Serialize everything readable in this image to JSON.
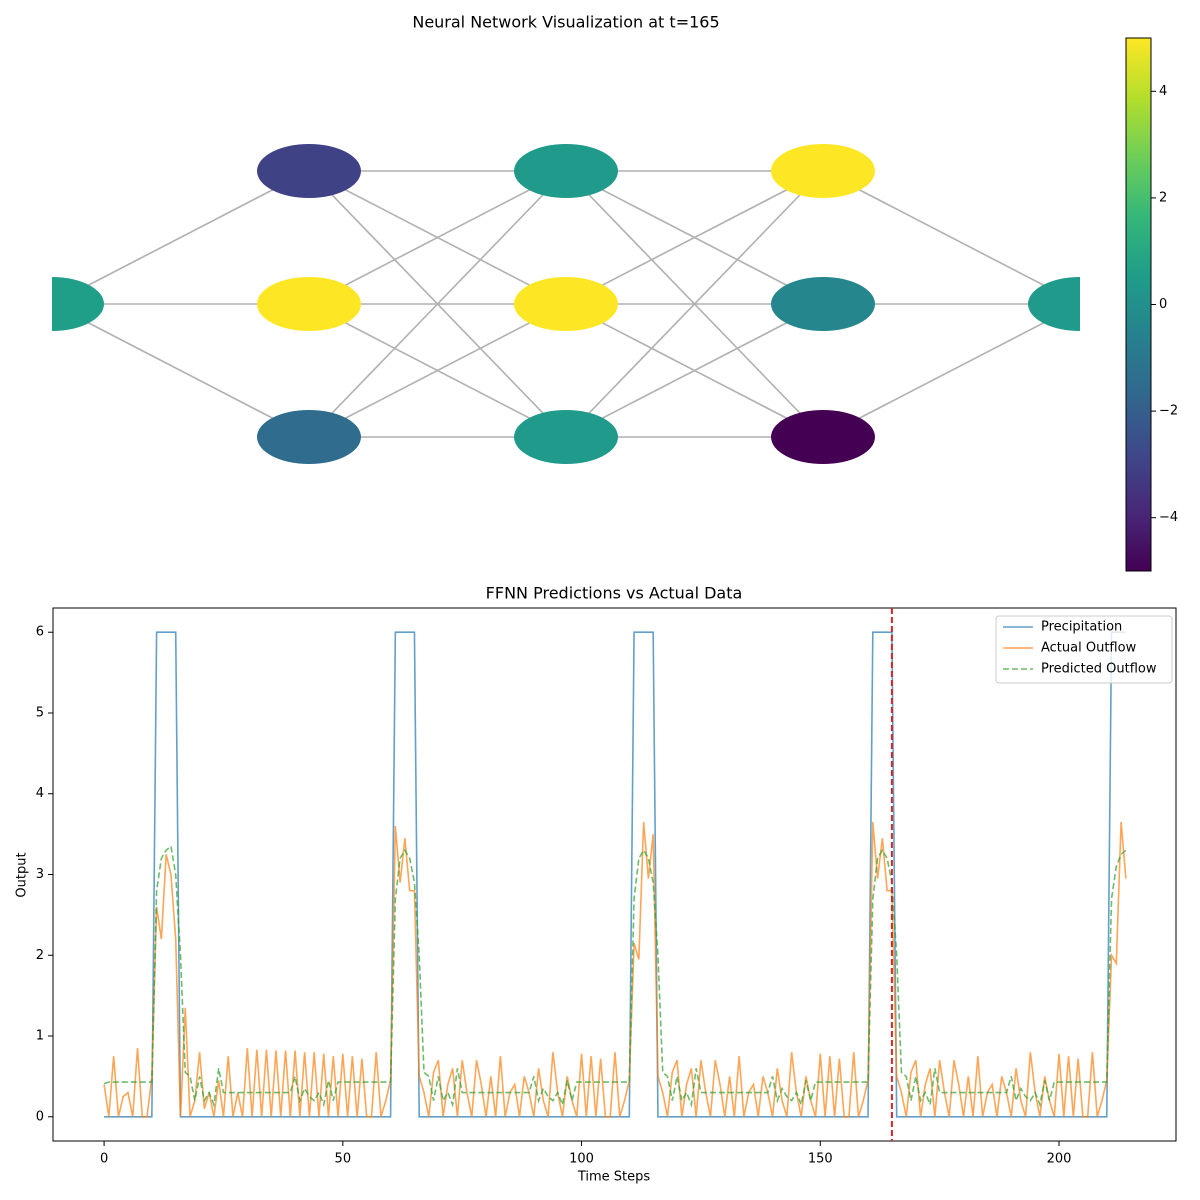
{
  "chart_data": [
    {
      "type": "network",
      "title": "Neural Network Visualization at t=165",
      "layers": [
        [
          0.6
        ],
        [
          -3,
          5,
          -1.5
        ],
        [
          0.4,
          5,
          0.4
        ],
        [
          5,
          -0.4,
          -5
        ],
        [
          0.4
        ]
      ],
      "colormap": "viridis",
      "clim": [
        -5,
        5
      ],
      "cticks": [
        {
          "value": -4,
          "label": "−4"
        },
        {
          "value": -2,
          "label": "−2"
        },
        0,
        2,
        4
      ]
    },
    {
      "type": "line",
      "title": "FFNN Predictions vs Actual Data",
      "xlabel": "Time Steps",
      "ylabel": "Output",
      "xlim": [
        -10.7,
        224.5
      ],
      "ylim": [
        -0.3,
        6.3
      ],
      "xticks": [
        0,
        50,
        100,
        150,
        200
      ],
      "yticks": [
        0,
        1,
        2,
        3,
        4,
        5,
        6
      ],
      "legend": "upper right",
      "vlines": [
        {
          "x": 165,
          "color": "#d62728"
        }
      ],
      "x": [
        0,
        1,
        2,
        3,
        4,
        5,
        6,
        7,
        8,
        9,
        10,
        11,
        12,
        13,
        14,
        15,
        16,
        17,
        18,
        19,
        20,
        21,
        22,
        23,
        24,
        25,
        26,
        27,
        28,
        29,
        30,
        31,
        32,
        33,
        34,
        35,
        36,
        37,
        38,
        39,
        40,
        41,
        42,
        43,
        44,
        45,
        46,
        47,
        48,
        49,
        50,
        51,
        52,
        53,
        54,
        55,
        56,
        57,
        58,
        59,
        60,
        61,
        62,
        63,
        64,
        65,
        66,
        67,
        68,
        69,
        70,
        71,
        72,
        73,
        74,
        75,
        76,
        77,
        78,
        79,
        80,
        81,
        82,
        83,
        84,
        85,
        86,
        87,
        88,
        89,
        90,
        91,
        92,
        93,
        94,
        95,
        96,
        97,
        98,
        99,
        100,
        101,
        102,
        103,
        104,
        105,
        106,
        107,
        108,
        109,
        110,
        111,
        112,
        113,
        114,
        115,
        116,
        117,
        118,
        119,
        120,
        121,
        122,
        123,
        124,
        125,
        126,
        127,
        128,
        129,
        130,
        131,
        132,
        133,
        134,
        135,
        136,
        137,
        138,
        139,
        140,
        141,
        142,
        143,
        144,
        145,
        146,
        147,
        148,
        149,
        150,
        151,
        152,
        153,
        154,
        155,
        156,
        157,
        158,
        159,
        160,
        161,
        162,
        163,
        164,
        165,
        166,
        167,
        168,
        169,
        170,
        171,
        172,
        173,
        174,
        175,
        176,
        177,
        178,
        179,
        180,
        181,
        182,
        183,
        184,
        185,
        186,
        187,
        188,
        189,
        190,
        191,
        192,
        193,
        194,
        195,
        196,
        197,
        198,
        199,
        200,
        201,
        202,
        203,
        204,
        205,
        206,
        207,
        208,
        209,
        210,
        211,
        212,
        213,
        214
      ],
      "series": [
        {
          "name": "Precipitation",
          "color": "#1f77b4",
          "style": "solid",
          "values": [
            0,
            0,
            0,
            0,
            0,
            0,
            0,
            0,
            0,
            0,
            0,
            6,
            6,
            6,
            6,
            6,
            0,
            0,
            0,
            0,
            0,
            0,
            0,
            0,
            0,
            0,
            0,
            0,
            0,
            0,
            0,
            0,
            0,
            0,
            0,
            0,
            0,
            0,
            0,
            0,
            0,
            0,
            0,
            0,
            0,
            0,
            0,
            0,
            0,
            0,
            0,
            0,
            0,
            0,
            0,
            0,
            0,
            0,
            0,
            0,
            0,
            6,
            6,
            6,
            6,
            6,
            0,
            0,
            0,
            0,
            0,
            0,
            0,
            0,
            0,
            0,
            0,
            0,
            0,
            0,
            0,
            0,
            0,
            0,
            0,
            0,
            0,
            0,
            0,
            0,
            0,
            0,
            0,
            0,
            0,
            0,
            0,
            0,
            0,
            0,
            0,
            0,
            0,
            0,
            0,
            0,
            0,
            0,
            0,
            0,
            0,
            6,
            6,
            6,
            6,
            6,
            0,
            0,
            0,
            0,
            0,
            0,
            0,
            0,
            0,
            0,
            0,
            0,
            0,
            0,
            0,
            0,
            0,
            0,
            0,
            0,
            0,
            0,
            0,
            0,
            0,
            0,
            0,
            0,
            0,
            0,
            0,
            0,
            0,
            0,
            0,
            0,
            0,
            0,
            0,
            0,
            0,
            0,
            0,
            0,
            0,
            6,
            6,
            6,
            6,
            6,
            0,
            0,
            0,
            0,
            0,
            0,
            0,
            0,
            0,
            0,
            0,
            0,
            0,
            0,
            0,
            0,
            0,
            0,
            0,
            0,
            0,
            0,
            0,
            0,
            0,
            0,
            0,
            0,
            0,
            0,
            0,
            0,
            0,
            0,
            0,
            0,
            0,
            0,
            0,
            0,
            0,
            0,
            0,
            0,
            0,
            6,
            6,
            6,
            6
          ]
        },
        {
          "name": "Actual Outflow",
          "color": "#ff7f0e",
          "style": "solid",
          "values": [
            0.4,
            0,
            0.75,
            0,
            0.25,
            0.3,
            0,
            0.85,
            0,
            0,
            0.5,
            2.6,
            2.2,
            3.25,
            3.0,
            2.2,
            0,
            1.35,
            0,
            0.2,
            0.8,
            0.1,
            0.3,
            0,
            0.45,
            0,
            0.75,
            0,
            0.3,
            0,
            0.85,
            0,
            0.83,
            0,
            0.83,
            0,
            0.82,
            0,
            0.82,
            0,
            0.82,
            0,
            0.8,
            0,
            0.8,
            0,
            0.78,
            0,
            0.75,
            0,
            0.78,
            0,
            0.75,
            0,
            0.72,
            0,
            0,
            0.8,
            0,
            0.2,
            0.45,
            3.6,
            2.9,
            3.45,
            2.8,
            2.8,
            0.5,
            0.3,
            0,
            0.55,
            0.7,
            0,
            0.4,
            0.6,
            0,
            0.7,
            0.3,
            0,
            0.7,
            0.4,
            0,
            0.5,
            0,
            0.75,
            0,
            0.3,
            0.4,
            0,
            0.5,
            0.3,
            0,
            0.6,
            0.2,
            0,
            0.8,
            0.3,
            0,
            0.5,
            0.2,
            0,
            0.78,
            0,
            0.75,
            0,
            0.72,
            0,
            0,
            0.8,
            0,
            0.2,
            0.45,
            2.15,
            1.95,
            3.65,
            2.95,
            3.5,
            0.5,
            0.3,
            0,
            0.55,
            0.7,
            0,
            0.4,
            0.6,
            0,
            0.7,
            0.3,
            0,
            0.7,
            0.4,
            0,
            0.5,
            0,
            0.75,
            0,
            0.3,
            0.4,
            0,
            0.5,
            0.3,
            0,
            0.6,
            0.2,
            0,
            0.8,
            0.3,
            0,
            0.5,
            0.2,
            0,
            0.78,
            0,
            0.75,
            0,
            0.72,
            0,
            0,
            0.8,
            0,
            0.2,
            0.45,
            3.65,
            2.95,
            3.45,
            2.8,
            2.8,
            0.5,
            0.3,
            0,
            0.55,
            0.7,
            0,
            0.4,
            0.6,
            0,
            0.7,
            0.3,
            0,
            0.7,
            0.4,
            0,
            0.5,
            0,
            0.75,
            0,
            0.3,
            0.4,
            0,
            0.5,
            0.3,
            0,
            0.6,
            0.2,
            0,
            0.8,
            0.3,
            0,
            0.5,
            0.2,
            0,
            0.78,
            0,
            0.75,
            0,
            0.72,
            0,
            0,
            0.8,
            0,
            0.2,
            0.45,
            2.0,
            1.9,
            3.65,
            2.95
          ]
        },
        {
          "name": "Predicted Outflow",
          "color": "#2ca02c",
          "style": "dashed",
          "values": [
            0.41,
            0.43,
            0.43,
            0.43,
            0.43,
            0.43,
            0.43,
            0.43,
            0.43,
            0.43,
            0.43,
            2.8,
            3.2,
            3.3,
            3.35,
            3.0,
            2.0,
            0.55,
            0.5,
            0.2,
            0.5,
            0.2,
            0.3,
            0.15,
            0.6,
            0.3,
            0.3,
            0.3,
            0.3,
            0.3,
            0.3,
            0.3,
            0.3,
            0.3,
            0.3,
            0.3,
            0.3,
            0.3,
            0.3,
            0.3,
            0.5,
            0.2,
            0.35,
            0.25,
            0.2,
            0.3,
            0.15,
            0.45,
            0.2,
            0.43,
            0.43,
            0.43,
            0.43,
            0.43,
            0.43,
            0.43,
            0.43,
            0.43,
            0.43,
            0.43,
            0.43,
            2.7,
            3.2,
            3.3,
            3.2,
            2.9,
            2.0,
            0.55,
            0.5,
            0.2,
            0.5,
            0.2,
            0.3,
            0.15,
            0.6,
            0.3,
            0.3,
            0.3,
            0.3,
            0.3,
            0.3,
            0.3,
            0.3,
            0.3,
            0.3,
            0.3,
            0.3,
            0.3,
            0.3,
            0.3,
            0.5,
            0.2,
            0.35,
            0.25,
            0.2,
            0.3,
            0.15,
            0.45,
            0.2,
            0.43,
            0.43,
            0.43,
            0.43,
            0.43,
            0.43,
            0.43,
            0.43,
            0.43,
            0.43,
            0.43,
            0.43,
            2.7,
            3.2,
            3.3,
            3.2,
            2.9,
            2.0,
            0.55,
            0.5,
            0.2,
            0.5,
            0.2,
            0.3,
            0.15,
            0.6,
            0.3,
            0.3,
            0.3,
            0.3,
            0.3,
            0.3,
            0.3,
            0.3,
            0.3,
            0.3,
            0.3,
            0.3,
            0.3,
            0.3,
            0.3,
            0.5,
            0.2,
            0.35,
            0.25,
            0.2,
            0.3,
            0.15,
            0.45,
            0.2,
            0.43,
            0.43,
            0.43,
            0.43,
            0.43,
            0.43,
            0.43,
            0.43,
            0.43,
            0.43,
            0.43,
            0.43,
            2.7,
            3.2,
            3.3,
            3.2,
            2.9,
            2.0,
            0.55,
            0.5,
            0.2,
            0.5,
            0.2,
            0.3,
            0.15,
            0.6,
            0.3,
            0.3,
            0.3,
            0.3,
            0.3,
            0.3,
            0.3,
            0.3,
            0.3,
            0.3,
            0.3,
            0.3,
            0.3,
            0.3,
            0.3,
            0.5,
            0.2,
            0.35,
            0.25,
            0.2,
            0.3,
            0.15,
            0.45,
            0.2,
            0.43,
            0.43,
            0.43,
            0.43,
            0.43,
            0.43,
            0.43,
            0.43,
            0.43,
            0.43,
            0.43,
            0.43,
            2.7,
            3.1,
            3.25,
            3.3
          ]
        }
      ]
    }
  ]
}
